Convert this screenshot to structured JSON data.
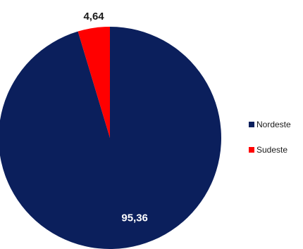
{
  "chart_data": {
    "type": "pie",
    "slices": [
      {
        "name": "Nordeste",
        "value": 95.36,
        "label": "95,36",
        "color": "#0b1f5c",
        "label_color": "#ffffff"
      },
      {
        "name": "Sudeste",
        "value": 4.64,
        "label": "4,64",
        "color": "#ff0000",
        "label_color": "#1a1a1a"
      }
    ],
    "start_angle_deg": 0,
    "direction": "counterclockwise",
    "legend": {
      "position": "right",
      "items": [
        {
          "label": "Nordeste",
          "color": "#0b1f5c"
        },
        {
          "label": "Sudeste",
          "color": "#ff0000"
        }
      ]
    }
  }
}
